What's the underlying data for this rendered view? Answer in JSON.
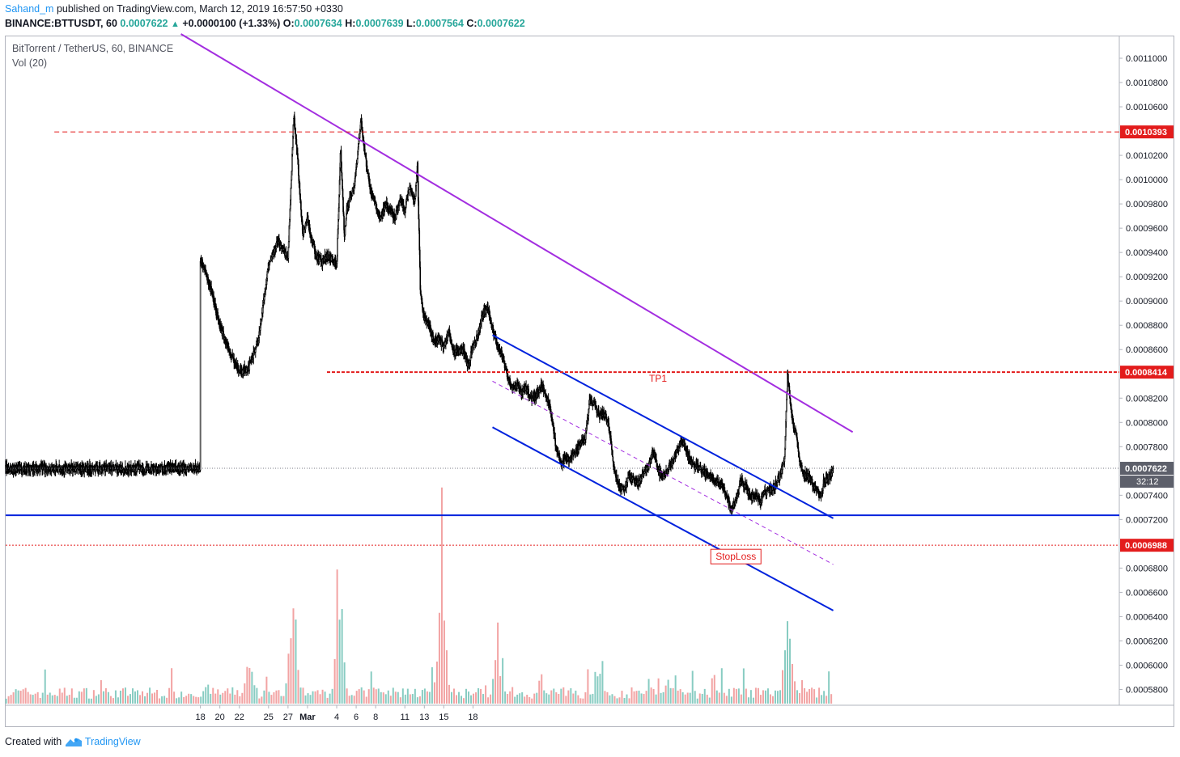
{
  "header": {
    "author": "Sahand_m",
    "published_text": "published on TradingView.com, March 12, 2019 16:57:50 +0330",
    "symbol": "BINANCE:BTTUSDT, 60",
    "price": "0.0007622",
    "change": "+0.0000100 (+1.33%)",
    "open_label": "O:",
    "open": "0.0007634",
    "high_label": "H:",
    "high": "0.0007639",
    "low_label": "L:",
    "low": "0.0007564",
    "close_label": "C:",
    "close": "0.0007622"
  },
  "footer": {
    "created_with": "Created with",
    "brand": "TradingView"
  },
  "colors": {
    "up": "#26a69a",
    "down": "#ef5350",
    "candle": "#000000",
    "purple": "#a32ee0",
    "blue": "#0022dd",
    "red": "#e31c1c",
    "vol_up": "#88ccc2",
    "vol_down": "#f2a3a3"
  },
  "chart_data": {
    "type": "candlestick",
    "title": "BitTorrent / TetherUS, 60, BINANCE",
    "indicator": "Vol (20)",
    "y_axis": {
      "ticks": [
        "0.0011000",
        "0.0010800",
        "0.0010600",
        "0.0010200",
        "0.0010000",
        "0.0009800",
        "0.0009600",
        "0.0009400",
        "0.0009200",
        "0.0009000",
        "0.0008800",
        "0.0008600",
        "0.0008200",
        "0.0008000",
        "0.0007800",
        "0.0007400",
        "0.0007200",
        "0.0006800",
        "0.0006600",
        "0.0006400",
        "0.0006200",
        "0.0006000",
        "0.0005800"
      ],
      "range": [
        0.000567,
        0.001118
      ]
    },
    "x_axis": {
      "ticks": [
        "18",
        "20",
        "22",
        "25",
        "27",
        "Mar",
        "4",
        "6",
        "8",
        "11",
        "13",
        "15",
        "18"
      ]
    },
    "price_path": [
      [
        0,
        0.000935
      ],
      [
        1,
        0.000912
      ],
      [
        2,
        0.00088
      ],
      [
        3,
        0.000858
      ],
      [
        4,
        0.000842
      ],
      [
        5,
        0.000845
      ],
      [
        6,
        0.00087
      ],
      [
        7,
        0.00093
      ],
      [
        8,
        0.00095
      ],
      [
        9,
        0.000935
      ],
      [
        9.6,
        0.001055
      ],
      [
        10,
        0.001015
      ],
      [
        10.5,
        0.000955
      ],
      [
        11,
        0.000968
      ],
      [
        11.5,
        0.000948
      ],
      [
        12,
        0.000935
      ],
      [
        12.5,
        0.000932
      ],
      [
        13,
        0.000938
      ],
      [
        14,
        0.00093
      ],
      [
        14.4,
        0.001025
      ],
      [
        14.8,
        0.00095
      ],
      [
        15,
        0.000975
      ],
      [
        15.8,
        0.000995
      ],
      [
        16.5,
        0.001048
      ],
      [
        17,
        0.001015
      ],
      [
        17.5,
        0.00099
      ],
      [
        18,
        0.000978
      ],
      [
        18.5,
        0.000968
      ],
      [
        19,
        0.00098
      ],
      [
        20,
        0.000968
      ],
      [
        20.5,
        0.000985
      ],
      [
        21,
        0.000975
      ],
      [
        21.5,
        0.000995
      ],
      [
        22,
        0.00098
      ],
      [
        22.3,
        0.001012
      ],
      [
        22.6,
        0.000905
      ],
      [
        23,
        0.000885
      ],
      [
        23.5,
        0.00088
      ],
      [
        24,
        0.000865
      ],
      [
        24.5,
        0.00087
      ],
      [
        25,
        0.000862
      ],
      [
        25.5,
        0.000875
      ],
      [
        26,
        0.000858
      ],
      [
        27,
        0.00086
      ],
      [
        27.5,
        0.000847
      ],
      [
        28,
        0.000862
      ],
      [
        28.5,
        0.000872
      ],
      [
        29,
        0.00089
      ],
      [
        29.5,
        0.000895
      ],
      [
        30,
        0.000878
      ],
      [
        30.5,
        0.000862
      ],
      [
        31,
        0.000855
      ],
      [
        31.5,
        0.00084
      ],
      [
        32,
        0.000828
      ],
      [
        32.5,
        0.00083
      ],
      [
        33,
        0.000825
      ],
      [
        33.5,
        0.000828
      ],
      [
        34,
        0.00082
      ],
      [
        34.5,
        0.000822
      ],
      [
        35,
        0.00083
      ],
      [
        35.5,
        0.000822
      ],
      [
        36,
        0.00081
      ],
      [
        36.5,
        0.00078
      ],
      [
        37,
        0.000765
      ],
      [
        37.5,
        0.00077
      ],
      [
        38,
        0.00077
      ],
      [
        38.5,
        0.000775
      ],
      [
        39,
        0.000782
      ],
      [
        39.5,
        0.000785
      ],
      [
        40,
        0.00082
      ],
      [
        40.5,
        0.000815
      ],
      [
        41,
        0.000805
      ],
      [
        41.5,
        0.000808
      ],
      [
        42,
        0.000795
      ],
      [
        42.5,
        0.00076
      ],
      [
        43,
        0.000748
      ],
      [
        43.5,
        0.000745
      ],
      [
        44,
        0.000755
      ],
      [
        44.5,
        0.000752
      ],
      [
        45,
        0.00075
      ],
      [
        45.5,
        0.000758
      ],
      [
        46,
        0.000762
      ],
      [
        46.5,
        0.000778
      ],
      [
        47,
        0.00076
      ],
      [
        47.5,
        0.000755
      ],
      [
        48,
        0.00076
      ],
      [
        48.5,
        0.000768
      ],
      [
        49,
        0.000778
      ],
      [
        49.5,
        0.000785
      ],
      [
        50,
        0.000775
      ],
      [
        50.5,
        0.000765
      ],
      [
        51,
        0.000765
      ],
      [
        51.5,
        0.00076
      ],
      [
        52,
        0.000758
      ],
      [
        52.5,
        0.000755
      ],
      [
        53,
        0.000752
      ],
      [
        53.5,
        0.000748
      ],
      [
        54,
        0.00074
      ],
      [
        54.5,
        0.000728
      ],
      [
        55,
        0.000735
      ],
      [
        55.5,
        0.000752
      ],
      [
        56,
        0.000748
      ],
      [
        56.5,
        0.000738
      ],
      [
        57,
        0.00074
      ],
      [
        57.5,
        0.000735
      ],
      [
        58,
        0.000742
      ],
      [
        58.5,
        0.000745
      ],
      [
        59,
        0.000748
      ],
      [
        59.5,
        0.000755
      ],
      [
        60,
        0.00077
      ],
      [
        60.3,
        0.00084
      ],
      [
        60.8,
        0.0008
      ],
      [
        61.2,
        0.00079
      ],
      [
        61.6,
        0.000765
      ],
      [
        62,
        0.000758
      ],
      [
        62.5,
        0.000755
      ],
      [
        63,
        0.000748
      ],
      [
        63.5,
        0.000742
      ],
      [
        63.8,
        0.000738
      ],
      [
        64,
        0.00075
      ],
      [
        64.5,
        0.000755
      ],
      [
        65,
        0.000762
      ]
    ],
    "volume_peaks": [
      [
        5,
        0.3
      ],
      [
        9.5,
        0.79
      ],
      [
        14.3,
        0.82
      ],
      [
        24.8,
        0.82
      ],
      [
        30.5,
        0.35
      ],
      [
        35,
        0.2
      ],
      [
        41,
        0.23
      ],
      [
        48,
        0.17
      ],
      [
        53,
        0.12
      ],
      [
        60.3,
        0.58
      ],
      [
        60.6,
        0.31
      ],
      [
        64.5,
        0.09
      ]
    ],
    "drawings": {
      "purple_trendline": {
        "from": [
          -2,
          0.00112
        ],
        "to": [
          67,
          0.000792
        ]
      },
      "channel_upper": {
        "from": [
          30,
          0.000872
        ],
        "to": [
          65,
          0.000721
        ]
      },
      "channel_lower": {
        "from": [
          30,
          0.000796
        ],
        "to": [
          65,
          0.000645
        ]
      },
      "channel_mid": {
        "from": [
          30,
          0.000834
        ],
        "to": [
          65,
          0.000683
        ]
      }
    },
    "levels": [
      {
        "value": 0.0010393,
        "label": "0.0010393",
        "style": "dashed",
        "color": "#e31c1c"
      },
      {
        "value": 0.0008414,
        "label": "0.0008414",
        "style": "dashed-thick",
        "color": "#e31c1c",
        "annotation": "TP1"
      },
      {
        "value": 0.0006988,
        "label": "0.0006988",
        "style": "dotted",
        "color": "#e31c1c",
        "annotation": "StopLoss"
      },
      {
        "value": 0.0007235,
        "label": "",
        "style": "solid",
        "color": "#0022dd"
      }
    ],
    "last_price": {
      "value": 0.0007622,
      "label": "0.0007622",
      "countdown": "32:12"
    }
  }
}
